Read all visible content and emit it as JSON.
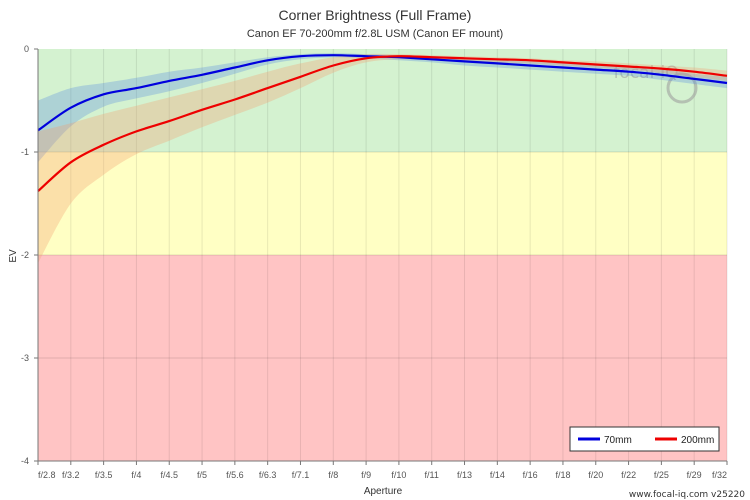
{
  "chart_data": {
    "type": "line",
    "title": "Corner Brightness (Full Frame)",
    "subtitle": "Canon EF 70-200mm f/2.8L USM (Canon EF mount)",
    "xlabel": "Aperture",
    "ylabel": "EV",
    "ylim": [
      -4,
      0
    ],
    "y_ticks": [
      "0",
      "-1",
      "-2",
      "-3",
      "-4"
    ],
    "categories": [
      "f/2.8",
      "f/3.2",
      "f/3.5",
      "f/4",
      "f/4.5",
      "f/5",
      "f/5.6",
      "f/6.3",
      "f/7.1",
      "f/8",
      "f/9",
      "f/10",
      "f/11",
      "f/13",
      "f/14",
      "f/16",
      "f/18",
      "f/20",
      "f/22",
      "f/25",
      "f/29",
      "f/32"
    ],
    "bands": [
      {
        "from": 0,
        "to": -1,
        "color": "#d4f2d0"
      },
      {
        "from": -1,
        "to": -2,
        "color": "#ffffc4"
      },
      {
        "from": -2,
        "to": -4,
        "color": "#ffc4c4"
      }
    ],
    "series": [
      {
        "name": "70mm",
        "color": "#0000dd",
        "band_color": "#5b8fe0",
        "values": [
          -0.79,
          -0.57,
          -0.44,
          -0.38,
          -0.31,
          -0.25,
          -0.18,
          -0.11,
          -0.07,
          -0.06,
          -0.07,
          -0.08,
          -0.1,
          -0.12,
          -0.14,
          -0.16,
          -0.18,
          -0.2,
          -0.22,
          -0.25,
          -0.29,
          -0.33
        ],
        "upper": [
          -0.5,
          -0.38,
          -0.33,
          -0.28,
          -0.22,
          -0.18,
          -0.13,
          -0.08,
          -0.05,
          -0.04,
          -0.05,
          -0.06,
          -0.07,
          -0.08,
          -0.1,
          -0.12,
          -0.14,
          -0.16,
          -0.18,
          -0.2,
          -0.24,
          -0.27
        ],
        "lower": [
          -1.1,
          -0.75,
          -0.56,
          -0.48,
          -0.41,
          -0.33,
          -0.24,
          -0.15,
          -0.1,
          -0.08,
          -0.09,
          -0.11,
          -0.13,
          -0.16,
          -0.18,
          -0.2,
          -0.22,
          -0.24,
          -0.26,
          -0.3,
          -0.34,
          -0.38
        ]
      },
      {
        "name": "200mm",
        "color": "#ee0000",
        "band_color": "#f4a070",
        "values": [
          -1.38,
          -1.1,
          -0.93,
          -0.8,
          -0.7,
          -0.59,
          -0.49,
          -0.38,
          -0.27,
          -0.16,
          -0.09,
          -0.07,
          -0.08,
          -0.09,
          -0.1,
          -0.11,
          -0.13,
          -0.15,
          -0.17,
          -0.19,
          -0.22,
          -0.26
        ],
        "upper": [
          -0.8,
          -0.72,
          -0.63,
          -0.55,
          -0.47,
          -0.39,
          -0.31,
          -0.22,
          -0.14,
          -0.08,
          -0.05,
          -0.05,
          -0.06,
          -0.07,
          -0.08,
          -0.09,
          -0.11,
          -0.12,
          -0.14,
          -0.16,
          -0.18,
          -0.21
        ],
        "lower": [
          -2.08,
          -1.5,
          -1.22,
          -1.02,
          -0.89,
          -0.76,
          -0.64,
          -0.52,
          -0.38,
          -0.23,
          -0.13,
          -0.1,
          -0.11,
          -0.12,
          -0.13,
          -0.14,
          -0.16,
          -0.18,
          -0.2,
          -0.23,
          -0.27,
          -0.31
        ]
      }
    ],
    "legend_position": "bottom-right",
    "grid": true,
    "credit": "www.focal-iq.com  v25220",
    "watermark": "focal-iQ"
  }
}
